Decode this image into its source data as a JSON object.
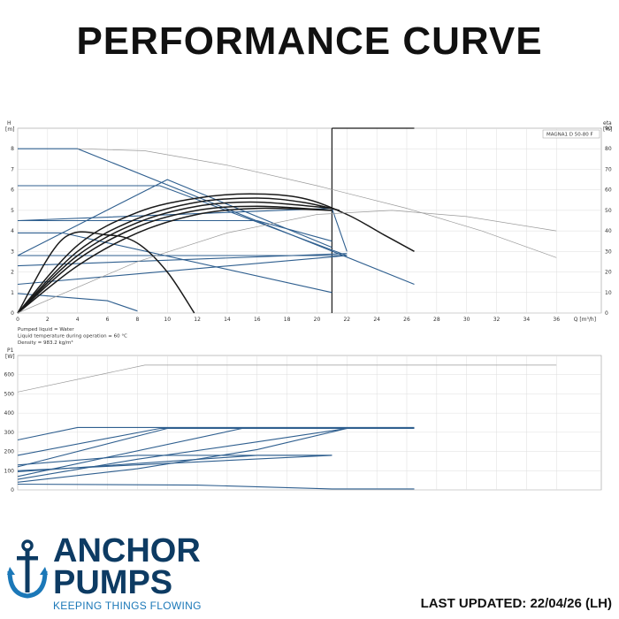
{
  "title": "PERFORMANCE CURVE",
  "last_updated": "LAST UPDATED: 22/04/26 (LH)",
  "brand": {
    "line1": "ANCHOR",
    "line2": "PUMPS",
    "tagline": "KEEPING THINGS FLOWING",
    "color": "#0d3b63",
    "accent": "#1b78b8",
    "icon": "anchor-icon"
  },
  "chart_data": [
    {
      "type": "line",
      "model_label": "MAGNA1 D 50-80 F",
      "ylabel": "H",
      "yunit": "[m]",
      "y2label": "eta",
      "y2unit": "[%]",
      "xlabel": "Q [m³/h]",
      "xlim": [
        0,
        39
      ],
      "ylim": [
        0,
        9
      ],
      "y2lim": [
        0,
        90
      ],
      "x_ticks": [
        0,
        2,
        4,
        6,
        8,
        10,
        12,
        14,
        16,
        18,
        20,
        22,
        24,
        26,
        28,
        30,
        32,
        34,
        36
      ],
      "y_ticks": [
        0,
        1,
        2,
        3,
        4,
        5,
        6,
        7,
        8
      ],
      "y2_ticks": [
        0,
        10,
        20,
        30,
        40,
        50,
        60,
        70,
        80,
        90
      ],
      "grid": true,
      "vertical_marker_x": 21,
      "notes": [
        "Pumped liquid = Water",
        "Liquid temperature during operation = 60 °C",
        "Density = 983.2 kg/m³"
      ],
      "series": [
        {
          "style": "blue",
          "x": [
            0,
            4,
            26.5
          ],
          "y": [
            8,
            8,
            1.4
          ]
        },
        {
          "style": "blue",
          "x": [
            0,
            9.5,
            22
          ],
          "y": [
            6.2,
            6.2,
            2.8
          ]
        },
        {
          "style": "blue",
          "x": [
            0,
            10,
            21
          ],
          "y": [
            2.8,
            6.5,
            3.2
          ]
        },
        {
          "style": "blue",
          "x": [
            0,
            16,
            21
          ],
          "y": [
            4.5,
            4.5,
            3.5
          ]
        },
        {
          "style": "blue",
          "x": [
            0,
            21,
            22
          ],
          "y": [
            4.5,
            5.1,
            3.0
          ]
        },
        {
          "style": "blue",
          "x": [
            0,
            3,
            21
          ],
          "y": [
            3.9,
            3.9,
            1.0
          ]
        },
        {
          "style": "blue",
          "x": [
            0,
            22
          ],
          "y": [
            2.3,
            2.9
          ]
        },
        {
          "style": "blue",
          "x": [
            0,
            22
          ],
          "y": [
            2.8,
            2.8
          ]
        },
        {
          "style": "blue",
          "x": [
            0,
            22
          ],
          "y": [
            1.4,
            2.8
          ]
        },
        {
          "style": "blue",
          "x": [
            0,
            6,
            8
          ],
          "y": [
            0.95,
            0.6,
            0.1
          ]
        },
        {
          "style": "black",
          "x": [
            0,
            4,
            8,
            12,
            15.5,
            19,
            22,
            24.5,
            26.5
          ],
          "y": [
            0,
            3.3,
            4.9,
            5.6,
            5.8,
            5.6,
            4.8,
            3.8,
            3.0
          ]
        },
        {
          "style": "black",
          "x": [
            0,
            4,
            8,
            12,
            16,
            19,
            21.5
          ],
          "y": [
            0,
            3.0,
            4.6,
            5.4,
            5.6,
            5.4,
            5.0
          ]
        },
        {
          "style": "black",
          "x": [
            0,
            4,
            8,
            12,
            16,
            21
          ],
          "y": [
            0,
            2.8,
            4.4,
            5.2,
            5.4,
            5.1
          ]
        },
        {
          "style": "black",
          "x": [
            0,
            4,
            8,
            12,
            16,
            21
          ],
          "y": [
            0,
            2.6,
            4.2,
            5.0,
            5.2,
            5.0
          ]
        },
        {
          "style": "black",
          "x": [
            0,
            4,
            8,
            12,
            16,
            21
          ],
          "y": [
            0,
            2.3,
            3.9,
            4.8,
            5.1,
            5.0
          ]
        },
        {
          "style": "black",
          "x": [
            0,
            3,
            6,
            8,
            10,
            11.8
          ],
          "y": [
            0,
            3.6,
            3.8,
            3.4,
            2.0,
            0
          ]
        },
        {
          "style": "grey",
          "axis": "y2",
          "x": [
            4,
            8.5,
            14,
            20,
            26,
            31,
            36
          ],
          "y": [
            80,
            79,
            72,
            62,
            51,
            40,
            27
          ]
        },
        {
          "style": "grey",
          "axis": "y2",
          "x": [
            0,
            8,
            14,
            20,
            25,
            30,
            36
          ],
          "y": [
            0,
            25,
            39,
            48,
            50,
            47,
            40
          ]
        }
      ]
    },
    {
      "type": "line",
      "ylabel": "P1",
      "yunit": "[W]",
      "xlim": [
        0,
        39
      ],
      "ylim": [
        0,
        700
      ],
      "y_ticks": [
        0,
        100,
        200,
        300,
        400,
        500,
        600
      ],
      "grid": true,
      "series": [
        {
          "style": "grey",
          "x": [
            0,
            8.5,
            36
          ],
          "y": [
            510,
            650,
            650
          ]
        },
        {
          "style": "blue",
          "x": [
            0,
            4,
            26.5
          ],
          "y": [
            260,
            325,
            325
          ]
        },
        {
          "style": "blue",
          "x": [
            0,
            9.5,
            26.5
          ],
          "y": [
            180,
            320,
            320
          ]
        },
        {
          "style": "blue",
          "x": [
            0,
            10,
            22
          ],
          "y": [
            120,
            320,
            320
          ]
        },
        {
          "style": "blue",
          "x": [
            0,
            15,
            22
          ],
          "y": [
            70,
            320,
            320
          ]
        },
        {
          "style": "blue",
          "x": [
            0,
            8,
            16,
            22
          ],
          "y": [
            55,
            160,
            250,
            320
          ]
        },
        {
          "style": "blue",
          "x": [
            0,
            8,
            16,
            22
          ],
          "y": [
            40,
            110,
            210,
            320
          ]
        },
        {
          "style": "blue",
          "x": [
            0,
            16,
            21
          ],
          "y": [
            95,
            180,
            180
          ]
        },
        {
          "style": "blue",
          "x": [
            0,
            8,
            21
          ],
          "y": [
            130,
            180,
            180
          ]
        },
        {
          "style": "blue",
          "x": [
            0,
            21
          ],
          "y": [
            100,
            180
          ]
        },
        {
          "style": "blue",
          "x": [
            0,
            12,
            21,
            26.5
          ],
          "y": [
            30,
            25,
            5,
            5
          ]
        }
      ]
    }
  ]
}
